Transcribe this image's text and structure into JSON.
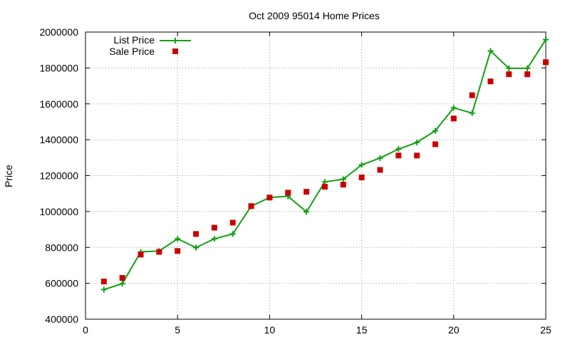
{
  "chart_data": {
    "type": "line",
    "title": "Oct 2009 95014 Home Prices",
    "xlabel": "",
    "ylabel": "Price",
    "xlim": [
      0,
      25
    ],
    "ylim": [
      400000,
      2000000
    ],
    "xticks": [
      0,
      5,
      10,
      15,
      20,
      25
    ],
    "yticks": [
      400000,
      600000,
      800000,
      1000000,
      1200000,
      1400000,
      1600000,
      1800000,
      2000000
    ],
    "grid": true,
    "legend_position": "top-left",
    "series": [
      {
        "name": "List Price",
        "style": "line-with-plus-markers",
        "color": "#11a011",
        "x": [
          1,
          2,
          3,
          4,
          5,
          6,
          7,
          8,
          9,
          10,
          11,
          12,
          13,
          14,
          15,
          16,
          17,
          18,
          19,
          20,
          21,
          22,
          23,
          24,
          25
        ],
        "values": [
          565000,
          598000,
          775000,
          780000,
          848000,
          799000,
          848000,
          875000,
          1030000,
          1078000,
          1085000,
          998000,
          1165000,
          1180000,
          1260000,
          1298000,
          1348000,
          1385000,
          1450000,
          1578000,
          1548000,
          1895000,
          1798000,
          1798000,
          1958000
        ]
      },
      {
        "name": "Sale Price",
        "style": "square-markers",
        "color": "#cc0000",
        "x": [
          1,
          2,
          3,
          4,
          5,
          6,
          7,
          8,
          9,
          10,
          11,
          12,
          13,
          14,
          15,
          16,
          17,
          18,
          19,
          20,
          21,
          22,
          23,
          24,
          25
        ],
        "values": [
          610000,
          630000,
          760000,
          775000,
          780000,
          875000,
          910000,
          938000,
          1030000,
          1078000,
          1105000,
          1110000,
          1138000,
          1150000,
          1190000,
          1232000,
          1312000,
          1312000,
          1375000,
          1518000,
          1648000,
          1725000,
          1765000,
          1765000,
          1832000
        ]
      }
    ]
  }
}
